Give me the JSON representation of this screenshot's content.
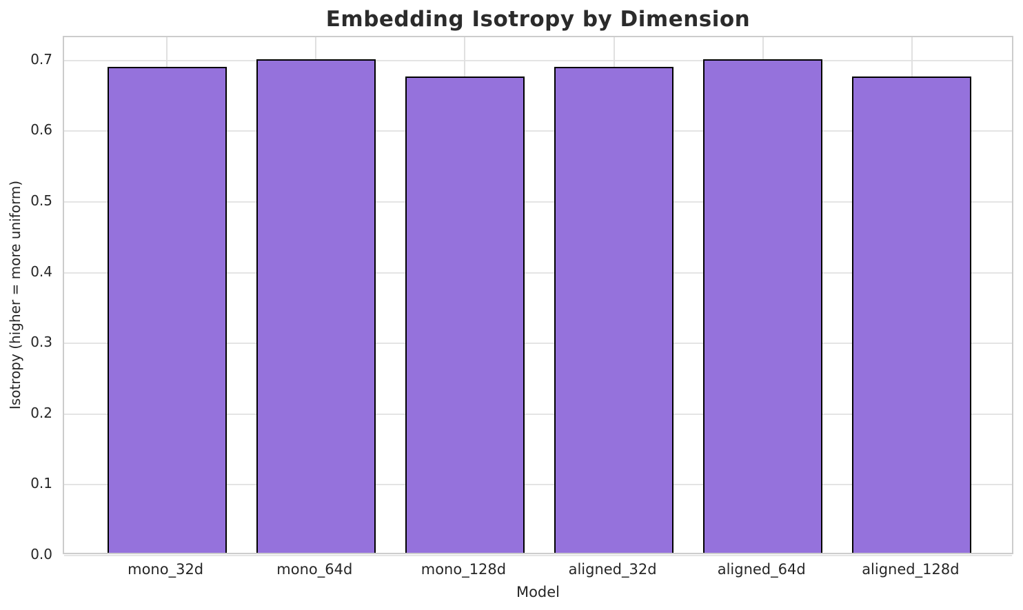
{
  "chart_data": {
    "type": "bar",
    "title": "Embedding Isotropy by Dimension",
    "xlabel": "Model",
    "ylabel": "Isotropy (higher = more uniform)",
    "categories": [
      "mono_32d",
      "mono_64d",
      "mono_128d",
      "aligned_32d",
      "aligned_64d",
      "aligned_128d"
    ],
    "values": [
      0.687,
      0.698,
      0.674,
      0.687,
      0.698,
      0.674
    ],
    "ylim": [
      0,
      0.733
    ],
    "yticks": [
      0.0,
      0.1,
      0.2,
      0.3,
      0.4,
      0.5,
      0.6,
      0.7
    ],
    "ytick_decimals": 1,
    "grid": true,
    "legend": "none",
    "x_units_total": 6.38,
    "x_first_center_units": 0.69,
    "bar_width_ratio": 0.8,
    "bar_color": "#9572DC",
    "bar_edge_color": "#000000"
  }
}
